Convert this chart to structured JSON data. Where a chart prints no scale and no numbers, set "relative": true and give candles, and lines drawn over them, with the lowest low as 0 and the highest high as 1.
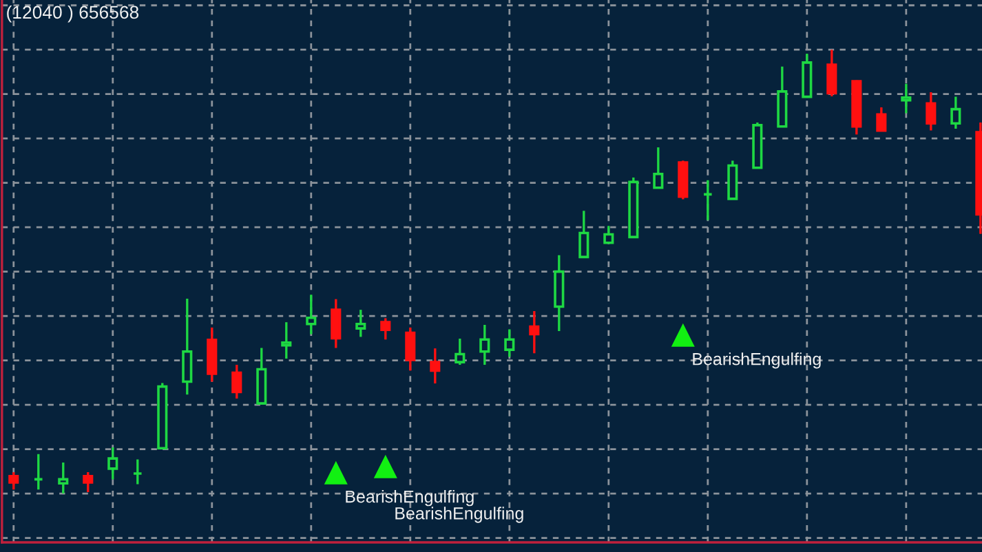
{
  "chart_data": {
    "type": "candlestick",
    "title": "(12040 ) 656568",
    "relative": true,
    "grid": true,
    "tick_labels": false,
    "marker": "triangle",
    "categories": [
      null,
      null,
      null,
      null,
      null,
      null,
      null,
      null,
      null,
      null,
      null,
      null,
      null,
      null,
      null,
      null,
      null,
      null,
      null,
      null,
      null,
      null,
      null,
      null,
      null,
      null,
      null,
      null,
      null,
      null,
      null,
      null,
      null,
      null,
      null,
      null,
      null,
      null,
      null,
      null
    ],
    "ohlc": [
      [
        0.039,
        0.048,
        0.009,
        0.025
      ],
      [
        0.032,
        0.089,
        0.009,
        0.032
      ],
      [
        0.023,
        0.07,
        0.0,
        0.032
      ],
      [
        0.039,
        0.048,
        0.003,
        0.025
      ],
      [
        0.056,
        0.104,
        0.032,
        0.079
      ],
      [
        0.045,
        0.077,
        0.021,
        0.045
      ],
      [
        0.102,
        0.249,
        0.102,
        0.241
      ],
      [
        0.252,
        0.439,
        0.223,
        0.32
      ],
      [
        0.346,
        0.374,
        0.252,
        0.27
      ],
      [
        0.272,
        0.29,
        0.214,
        0.229
      ],
      [
        0.203,
        0.328,
        0.203,
        0.28
      ],
      [
        0.334,
        0.386,
        0.304,
        0.34
      ],
      [
        0.382,
        0.448,
        0.359,
        0.396
      ],
      [
        0.414,
        0.438,
        0.328,
        0.35
      ],
      [
        0.372,
        0.414,
        0.353,
        0.382
      ],
      [
        0.386,
        0.395,
        0.347,
        0.369
      ],
      [
        0.362,
        0.374,
        0.277,
        0.301
      ],
      [
        0.296,
        0.327,
        0.248,
        0.277
      ],
      [
        0.296,
        0.349,
        0.29,
        0.314
      ],
      [
        0.32,
        0.38,
        0.29,
        0.347
      ],
      [
        0.324,
        0.37,
        0.308,
        0.347
      ],
      [
        0.376,
        0.411,
        0.316,
        0.359
      ],
      [
        0.421,
        0.537,
        0.366,
        0.5
      ],
      [
        0.533,
        0.637,
        0.533,
        0.587
      ],
      [
        0.565,
        0.603,
        0.565,
        0.584
      ],
      [
        0.578,
        0.712,
        0.578,
        0.702
      ],
      [
        0.689,
        0.78,
        0.689,
        0.72
      ],
      [
        0.746,
        0.75,
        0.663,
        0.669
      ],
      [
        0.674,
        0.706,
        0.616,
        0.674
      ],
      [
        0.664,
        0.75,
        0.664,
        0.739
      ],
      [
        0.734,
        0.836,
        0.734,
        0.83
      ],
      [
        0.827,
        0.962,
        0.827,
        0.906
      ],
      [
        0.894,
        0.991,
        0.894,
        0.971
      ],
      [
        0.966,
        1,
        0.895,
        0.902
      ],
      [
        0.929,
        0.931,
        0.809,
        0.827
      ],
      [
        0.854,
        0.87,
        0.818,
        0.818
      ],
      [
        0.886,
        0.923,
        0.857,
        0.892
      ],
      [
        0.879,
        0.904,
        0.818,
        0.834
      ],
      [
        0.834,
        0.894,
        0.822,
        0.866
      ],
      [
        0.814,
        0.836,
        0.585,
        0.629
      ]
    ],
    "colors": [
      "#ff1010",
      "#1ed843",
      "#1ed843",
      "#ff1010",
      "#1ed843",
      "#1ed843",
      "#1ed843",
      "#1ed843",
      "#ff1010",
      "#ff1010",
      "#1ed843",
      "#1ed843",
      "#1ed843",
      "#ff1010",
      "#1ed843",
      "#ff1010",
      "#ff1010",
      "#ff1010",
      "#1ed843",
      "#1ed843",
      "#1ed843",
      "#ff1010",
      "#1ed843",
      "#1ed843",
      "#1ed843",
      "#1ed843",
      "#1ed843",
      "#ff1010",
      "#1ed843",
      "#1ed843",
      "#1ed843",
      "#1ed843",
      "#1ed843",
      "#ff1010",
      "#ff1010",
      "#ff1010",
      "#1ed843",
      "#ff1010",
      "#1ed843",
      "#ff1010"
    ],
    "series": [
      {
        "type": "scatter",
        "color": "#12f012",
        "values": [
          null,
          null,
          null,
          null,
          null,
          null,
          null,
          null,
          null,
          null,
          null,
          null,
          null,
          0.047,
          null,
          0.061,
          null,
          null,
          null,
          null,
          null,
          null,
          null,
          null,
          null,
          null,
          null,
          0.357,
          null,
          null,
          null,
          null,
          null,
          null,
          null,
          null,
          null,
          null,
          null,
          null
        ]
      }
    ],
    "annotations": [
      "BearishEngulfing",
      "BearishEngulfing",
      "BearishEngulfing"
    ]
  }
}
